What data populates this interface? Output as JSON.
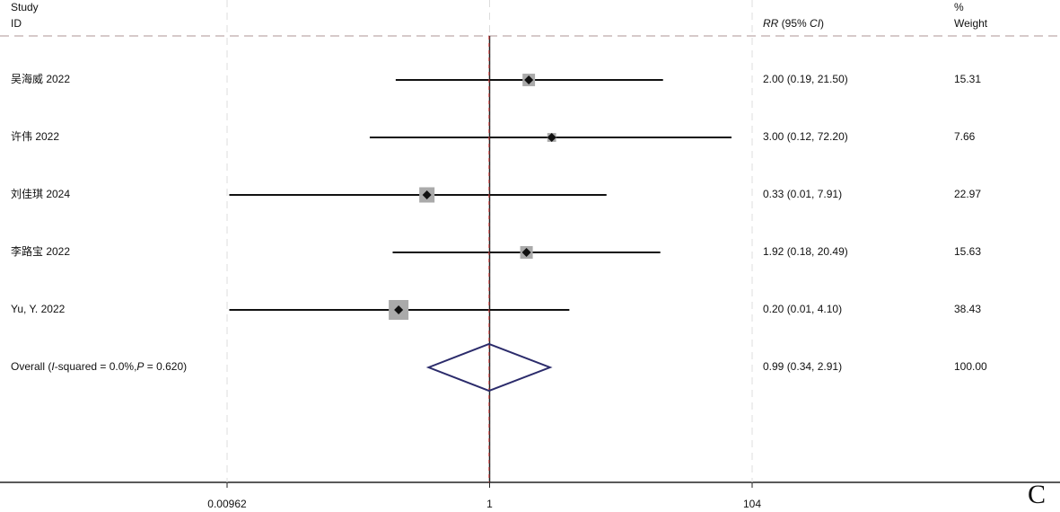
{
  "chart_data": {
    "type": "forest",
    "panel_label": "C",
    "header": {
      "study": [
        "Study",
        "ID"
      ],
      "effect": [
        "RR",
        " (95% ",
        "CI",
        ")"
      ],
      "weight": [
        "%",
        "Weight"
      ]
    },
    "log_scale": true,
    "xlim": [
      0.00962,
      104
    ],
    "xticks": [
      0.00962,
      1,
      104
    ],
    "reference_line": 1,
    "studies": [
      {
        "label": "吴海威 2022",
        "rr": 2.0,
        "ci_low": 0.19,
        "ci_high": 21.5,
        "effect_label": "2.00 (0.19, 21.50)",
        "weight": 15.31
      },
      {
        "label": "许伟 2022",
        "rr": 3.0,
        "ci_low": 0.12,
        "ci_high": 72.2,
        "effect_label": "3.00 (0.12, 72.20)",
        "weight": 7.66
      },
      {
        "label": "刘佳琪 2024",
        "rr": 0.33,
        "ci_low": 0.01,
        "ci_high": 7.91,
        "effect_label": "0.33 (0.01, 7.91)",
        "weight": 22.97
      },
      {
        "label": "李路宝 2022",
        "rr": 1.92,
        "ci_low": 0.18,
        "ci_high": 20.49,
        "effect_label": "1.92 (0.18, 20.49)",
        "weight": 15.63
      },
      {
        "label": "Yu, Y. 2022",
        "rr": 0.2,
        "ci_low": 0.01,
        "ci_high": 4.1,
        "effect_label": "0.20 (0.01, 4.10)",
        "weight": 38.43
      }
    ],
    "overall": {
      "label": [
        "Overall  (",
        "I",
        "-squared = 0.0%,",
        "P",
        " = 0.620)"
      ],
      "rr": 0.99,
      "ci_low": 0.34,
      "ci_high": 2.91,
      "effect_label": "0.99 (0.34, 2.91)",
      "weight": 100.0,
      "weight_label": "100.00"
    }
  }
}
